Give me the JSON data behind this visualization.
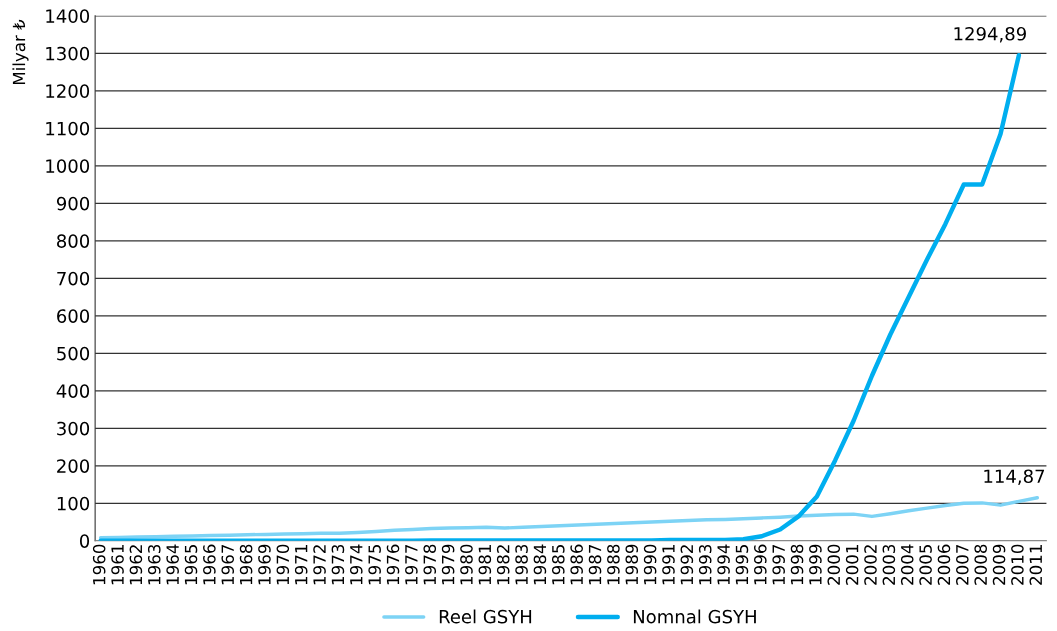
{
  "chart_data": {
    "type": "line",
    "ylabel": "Milyar ₺",
    "categories": [
      "1960",
      "1961",
      "1962",
      "1963",
      "1964",
      "1965",
      "1966",
      "1967",
      "1968",
      "1969",
      "1970",
      "1971",
      "1972",
      "1973",
      "1974",
      "1975",
      "1976",
      "1977",
      "1978",
      "1979",
      "1980",
      "1981",
      "1982",
      "1983",
      "1984",
      "1985",
      "1986",
      "1987",
      "1988",
      "1989",
      "1990",
      "1991",
      "1992",
      "1993",
      "1994",
      "1995",
      "1996",
      "1997",
      "1998",
      "1999",
      "2000",
      "2001",
      "2002",
      "2003",
      "2004",
      "2005",
      "2006",
      "2007",
      "2008",
      "2009",
      "2010",
      "2011"
    ],
    "series": [
      {
        "name": "Reel GSYH",
        "color": "#7dd3f5",
        "values": [
          8,
          9,
          10,
          11,
          12,
          13,
          14,
          15,
          16,
          17,
          18,
          19,
          20,
          20,
          22,
          25,
          28,
          30,
          33,
          34,
          35,
          36,
          34,
          36,
          38,
          40,
          42,
          44,
          46,
          48,
          50,
          52,
          54,
          56,
          57,
          59,
          61,
          63,
          66,
          68,
          70,
          71,
          65,
          72,
          80,
          87,
          94,
          100,
          101,
          95,
          105,
          114.87
        ]
      },
      {
        "name": "Nomnal GSYH",
        "color": "#00aeef",
        "values": [
          0,
          0,
          0,
          0,
          0,
          0,
          0,
          0,
          0,
          0,
          0,
          0,
          0,
          0,
          0,
          0,
          0,
          0,
          1,
          1,
          1,
          1,
          1,
          1,
          1,
          1,
          1,
          1,
          1,
          1,
          1,
          2,
          2,
          2,
          2,
          4,
          12,
          30,
          65,
          118,
          215,
          320,
          440,
          550,
          650,
          750,
          845,
          950,
          950,
          1085,
          1294.89,
          null
        ]
      }
    ],
    "ylim": [
      0,
      1400
    ],
    "yticks": [
      0,
      100,
      200,
      300,
      400,
      500,
      600,
      700,
      800,
      900,
      1000,
      1100,
      1200,
      1300,
      1400
    ],
    "grid": "y",
    "legend": "bottom",
    "annotations": [
      {
        "text": "1294,89",
        "x": "2010",
        "y": 1294.89
      },
      {
        "text": "114,87",
        "x": "2011",
        "y": 114.87
      }
    ]
  }
}
